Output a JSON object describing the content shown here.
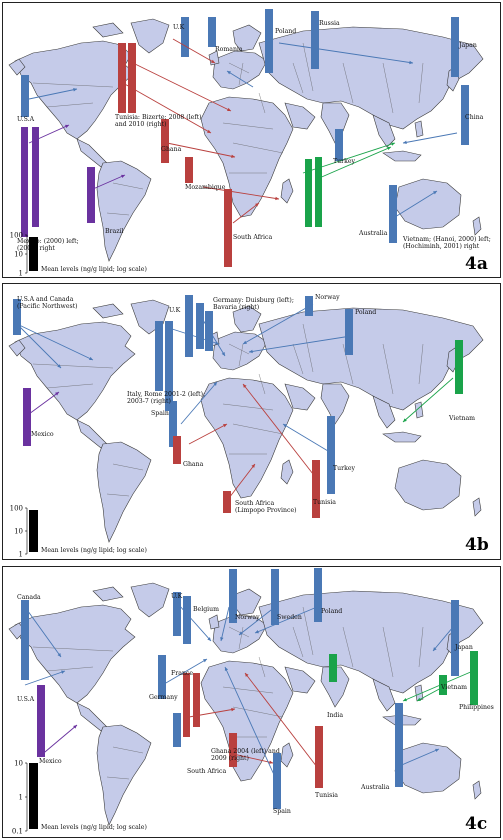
{
  "colors": {
    "blue": "#4a78b5",
    "red": "#b9403e",
    "green": "#1aa34a",
    "purple": "#6a329f",
    "land": "#c5cbe9",
    "legend_bar": "#000000"
  },
  "panels": [
    {
      "id": "4a",
      "legend": {
        "ticks": [
          "100",
          "10",
          "1"
        ],
        "label": "Mean levels (ng/g lipid; log scale)"
      },
      "labels": [
        {
          "text": "U.K",
          "color": "blue"
        },
        {
          "text": "Romania",
          "color": "blue"
        },
        {
          "text": "Poland",
          "color": "blue"
        },
        {
          "text": "Russia",
          "color": "blue"
        },
        {
          "text": "Japan",
          "color": "blue"
        },
        {
          "text": "U.S.A",
          "color": "blue"
        },
        {
          "text": "Tunisia: Bizerte; 2008 (left)",
          "color": "red"
        },
        {
          "text": "and 2010 (right)",
          "color": "red"
        },
        {
          "text": "China",
          "color": "blue"
        },
        {
          "text": "Ghana",
          "color": "red"
        },
        {
          "text": "Turkey",
          "color": "blue"
        },
        {
          "text": "Mozambique",
          "color": "red"
        },
        {
          "text": "Mexico: (2000) left;",
          "color": "purple"
        },
        {
          "text": "(2006) right",
          "color": "purple"
        },
        {
          "text": "Brazil",
          "color": "purple"
        },
        {
          "text": "South Africa",
          "color": "red"
        },
        {
          "text": "Australia",
          "color": "blue"
        },
        {
          "text": "Vietnam; (Hanoi, 2000) left;",
          "color": "green"
        },
        {
          "text": "(Hochiminh, 2001) right",
          "color": "green"
        }
      ]
    },
    {
      "id": "4b",
      "legend": {
        "ticks": [
          "100",
          "10",
          "1"
        ],
        "label": "Mean levels (ng/g lipid; log scale)"
      },
      "labels": [
        {
          "text": "U.S.A and Canada",
          "color": "blue"
        },
        {
          "text": "(Pacific Northwest)",
          "color": "blue"
        },
        {
          "text": "U.K",
          "color": "blue"
        },
        {
          "text": "Germany: Duisburg (left);",
          "color": "blue"
        },
        {
          "text": "Bavaria (right)",
          "color": "blue"
        },
        {
          "text": "Norway",
          "color": "blue"
        },
        {
          "text": "Poland",
          "color": "blue"
        },
        {
          "text": "Italy, Rome 2001-2 (left);",
          "color": "blue"
        },
        {
          "text": "2003-7 (right)",
          "color": "blue"
        },
        {
          "text": "Spain",
          "color": "blue"
        },
        {
          "text": "Mexico",
          "color": "purple"
        },
        {
          "text": "Vietnam",
          "color": "green"
        },
        {
          "text": "Ghana",
          "color": "red"
        },
        {
          "text": "Turkey",
          "color": "blue"
        },
        {
          "text": "Tunisia",
          "color": "red"
        },
        {
          "text": "South Africa",
          "color": "red"
        },
        {
          "text": "(Limpopo Province)",
          "color": "red"
        }
      ]
    },
    {
      "id": "4c",
      "legend": {
        "ticks": [
          "10",
          "1",
          "0.1"
        ],
        "label": "Mean levels (ng/g lipid; log scale)"
      },
      "labels": [
        {
          "text": "Canada",
          "color": "blue"
        },
        {
          "text": "U.K",
          "color": "blue"
        },
        {
          "text": "Belgium",
          "color": "blue"
        },
        {
          "text": "Norway",
          "color": "blue"
        },
        {
          "text": "Sweden",
          "color": "blue"
        },
        {
          "text": "Poland",
          "color": "blue"
        },
        {
          "text": "Japan",
          "color": "blue"
        },
        {
          "text": "France",
          "color": "blue"
        },
        {
          "text": "Vietnam",
          "color": "green"
        },
        {
          "text": "U.S.A",
          "color": "blue"
        },
        {
          "text": "Germany",
          "color": "blue"
        },
        {
          "text": "India",
          "color": "green"
        },
        {
          "text": "Philippines",
          "color": "green"
        },
        {
          "text": "Ghana 2004 (left) and",
          "color": "red"
        },
        {
          "text": "2009 (right)",
          "color": "red"
        },
        {
          "text": "Mexico",
          "color": "purple"
        },
        {
          "text": "South Africa",
          "color": "red"
        },
        {
          "text": "Tunisia",
          "color": "red"
        },
        {
          "text": "Australia",
          "color": "blue"
        },
        {
          "text": "Spain",
          "color": "blue"
        }
      ]
    }
  ]
}
